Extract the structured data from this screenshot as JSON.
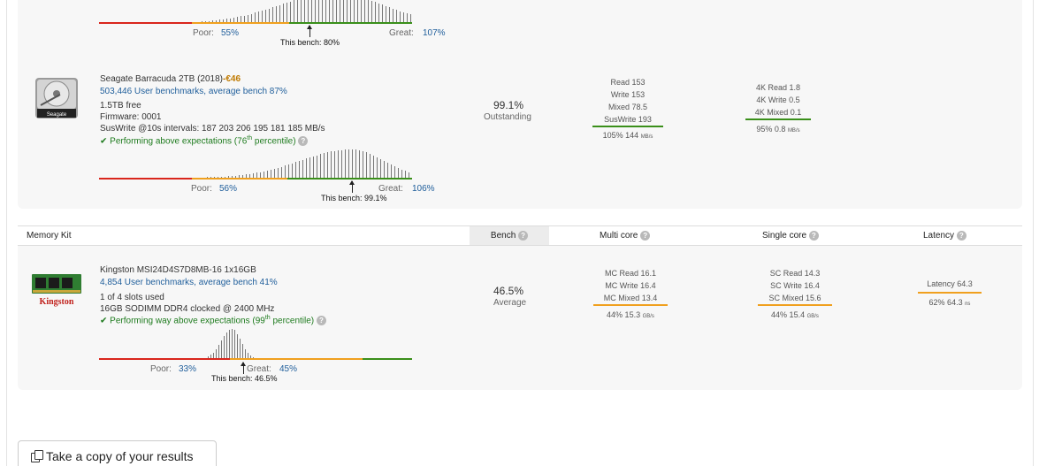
{
  "first_drive": {
    "hist_poor_label": "Poor:",
    "hist_poor_value": "55%",
    "hist_great_label": "Great:",
    "hist_great_value": "107%",
    "this_bench": "This bench: 80%"
  },
  "hdd": {
    "name": "Seagate Barracuda 2TB (2018)",
    "price": "-€46",
    "benchmarks": "503,446 User benchmarks, average bench 87%",
    "free": "1.5TB free",
    "firmware": "Firmware: 0001",
    "suswrite": "SusWrite @10s intervals: 187 203 206 195 181 185 MB/s",
    "performance": "Performing above expectations (76",
    "performance_sup": "th",
    "performance_tail": " percentile)",
    "bench_score": "99.1%",
    "bench_label": "Outstanding",
    "metrics_seq": [
      "Read 153",
      "Write 153",
      "Mixed 78.5",
      "SusWrite 193"
    ],
    "seq_summary": "105% 144",
    "seq_unit": "MB/s",
    "metrics_4k": [
      "4K Read 1.8",
      "4K Write 0.5",
      "4K Mixed 0.1"
    ],
    "k4_summary": "95% 0.8",
    "k4_unit": "MB/s",
    "hist_poor_label": "Poor:",
    "hist_poor_value": "56%",
    "hist_great_label": "Great:",
    "hist_great_value": "106%",
    "this_bench": "This bench: 99.1%"
  },
  "memory_header": {
    "title": "Memory Kit",
    "bench": "Bench",
    "multi_core": "Multi core",
    "single_core": "Single core",
    "latency": "Latency"
  },
  "ram": {
    "name": "Kingston MSI24D4S7D8MB-16 1x16GB",
    "benchmarks": "4,854 User benchmarks, average bench 41%",
    "slots": "1 of 4 slots used",
    "spec": "16GB SODIMM DDR4 clocked @ 2400 MHz",
    "performance": "Performing way above expectations (99",
    "performance_sup": "th",
    "performance_tail": " percentile)",
    "bench_score": "46.5%",
    "bench_label": "Average",
    "mc_metrics": [
      "MC Read 16.1",
      "MC Write 16.4",
      "MC Mixed 13.4"
    ],
    "mc_summary": "44% 15.3",
    "mc_unit": "GB/s",
    "sc_metrics": [
      "SC Read 14.3",
      "SC Write 16.4",
      "SC Mixed 15.6"
    ],
    "sc_summary": "44% 15.4",
    "sc_unit": "GB/s",
    "latency_metric": "Latency 64.3",
    "latency_summary": "62% 64.3",
    "latency_unit": "ns",
    "hist_poor_label": "Poor:",
    "hist_poor_value": "33%",
    "hist_great_label": "Great:",
    "hist_great_value": "45%",
    "this_bench": "This bench: 46.5%"
  },
  "icons": {
    "hdd": "hard-drive-icon",
    "ram": "memory-module-icon",
    "help": "question-icon",
    "check": "check-icon",
    "copy": "copy-icon"
  },
  "hdd_brand": "Seagate",
  "ram_brand": "Kingston",
  "copy_button": "Take a copy of your results"
}
